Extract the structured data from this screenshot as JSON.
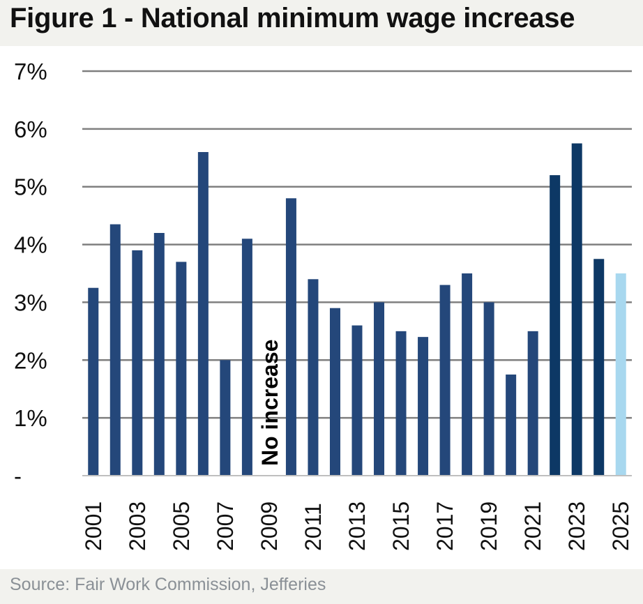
{
  "title": "Figure 1 - National minimum wage increase",
  "source": "Source: Fair Work Commission, Jefferies",
  "colors": {
    "bar": "#24477a",
    "bar_recent": "#0d3865",
    "bar_highlight": "#a8d8ef",
    "grid": "#7f7f7f",
    "background": "#f2f2ee",
    "panel": "#ffffff"
  },
  "chart_data": {
    "type": "bar",
    "title": "Figure 1 - National minimum wage increase",
    "xlabel": "",
    "ylabel": "",
    "categories": [
      "2001",
      "2002",
      "2003",
      "2004",
      "2005",
      "2006",
      "2007",
      "2008",
      "2009",
      "2010",
      "2011",
      "2012",
      "2013",
      "2014",
      "2015",
      "2016",
      "2017",
      "2018",
      "2019",
      "2020",
      "2021",
      "2022",
      "2023",
      "2024",
      "2025"
    ],
    "values": [
      3.25,
      4.35,
      3.9,
      4.2,
      3.7,
      5.6,
      2.0,
      4.1,
      0,
      4.8,
      3.4,
      2.9,
      2.6,
      3.0,
      2.5,
      2.4,
      3.3,
      3.5,
      3.0,
      1.75,
      2.5,
      5.2,
      5.75,
      3.75,
      3.5
    ],
    "x_tick_labels": [
      "2001",
      "2003",
      "2005",
      "2007",
      "2009",
      "2011",
      "2013",
      "2015",
      "2017",
      "2019",
      "2021",
      "2023",
      "2025"
    ],
    "y_tick_labels": [
      "-",
      "1%",
      "2%",
      "3%",
      "4%",
      "5%",
      "6%",
      "7%"
    ],
    "ylim": [
      0,
      7
    ],
    "grid": true,
    "highlight_category": "2025",
    "annotation": {
      "text": "No increase",
      "category": "2009"
    }
  }
}
